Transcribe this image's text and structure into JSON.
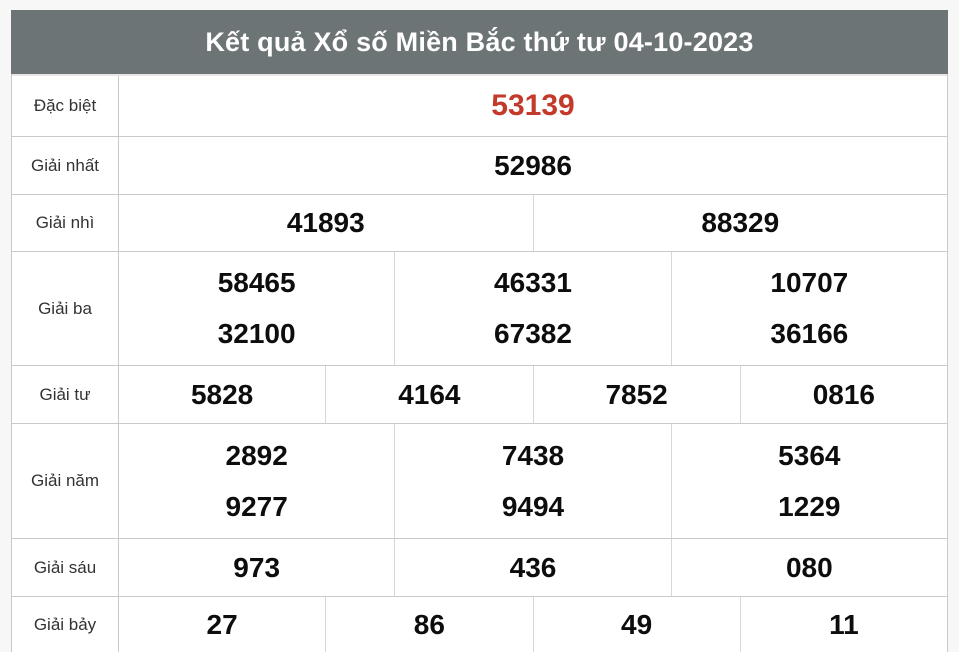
{
  "header": {
    "title": "Kết quả Xổ số Miền Bắc thứ tư 04-10-2023"
  },
  "colors": {
    "header_bg": "#6c7476",
    "header_text": "#ffffff",
    "special_number": "#c3392a",
    "number_text": "#0d0d0d",
    "border": "#c9c9c9",
    "footer_bar": "#8c4a0e",
    "cell_bg": "#ffffff"
  },
  "results": {
    "dac_biet": {
      "label": "Đặc biệt",
      "value": "53139"
    },
    "giai_nhat": {
      "label": "Giải nhất",
      "value": "52986"
    },
    "giai_nhi": {
      "label": "Giải nhì",
      "values": [
        "41893",
        "88329"
      ]
    },
    "giai_ba": {
      "label": "Giải ba",
      "line1": [
        "58465",
        "46331",
        "10707"
      ],
      "line2": [
        "32100",
        "67382",
        "36166"
      ]
    },
    "giai_tu": {
      "label": "Giải tư",
      "values": [
        "5828",
        "4164",
        "7852",
        "0816"
      ]
    },
    "giai_nam": {
      "label": "Giải năm",
      "line1": [
        "2892",
        "7438",
        "5364"
      ],
      "line2": [
        "9277",
        "9494",
        "1229"
      ]
    },
    "giai_sau": {
      "label": "Giải sáu",
      "values": [
        "973",
        "436",
        "080"
      ]
    },
    "giai_bay": {
      "label": "Giải bảy",
      "values": [
        "27",
        "86",
        "49",
        "11"
      ]
    }
  }
}
